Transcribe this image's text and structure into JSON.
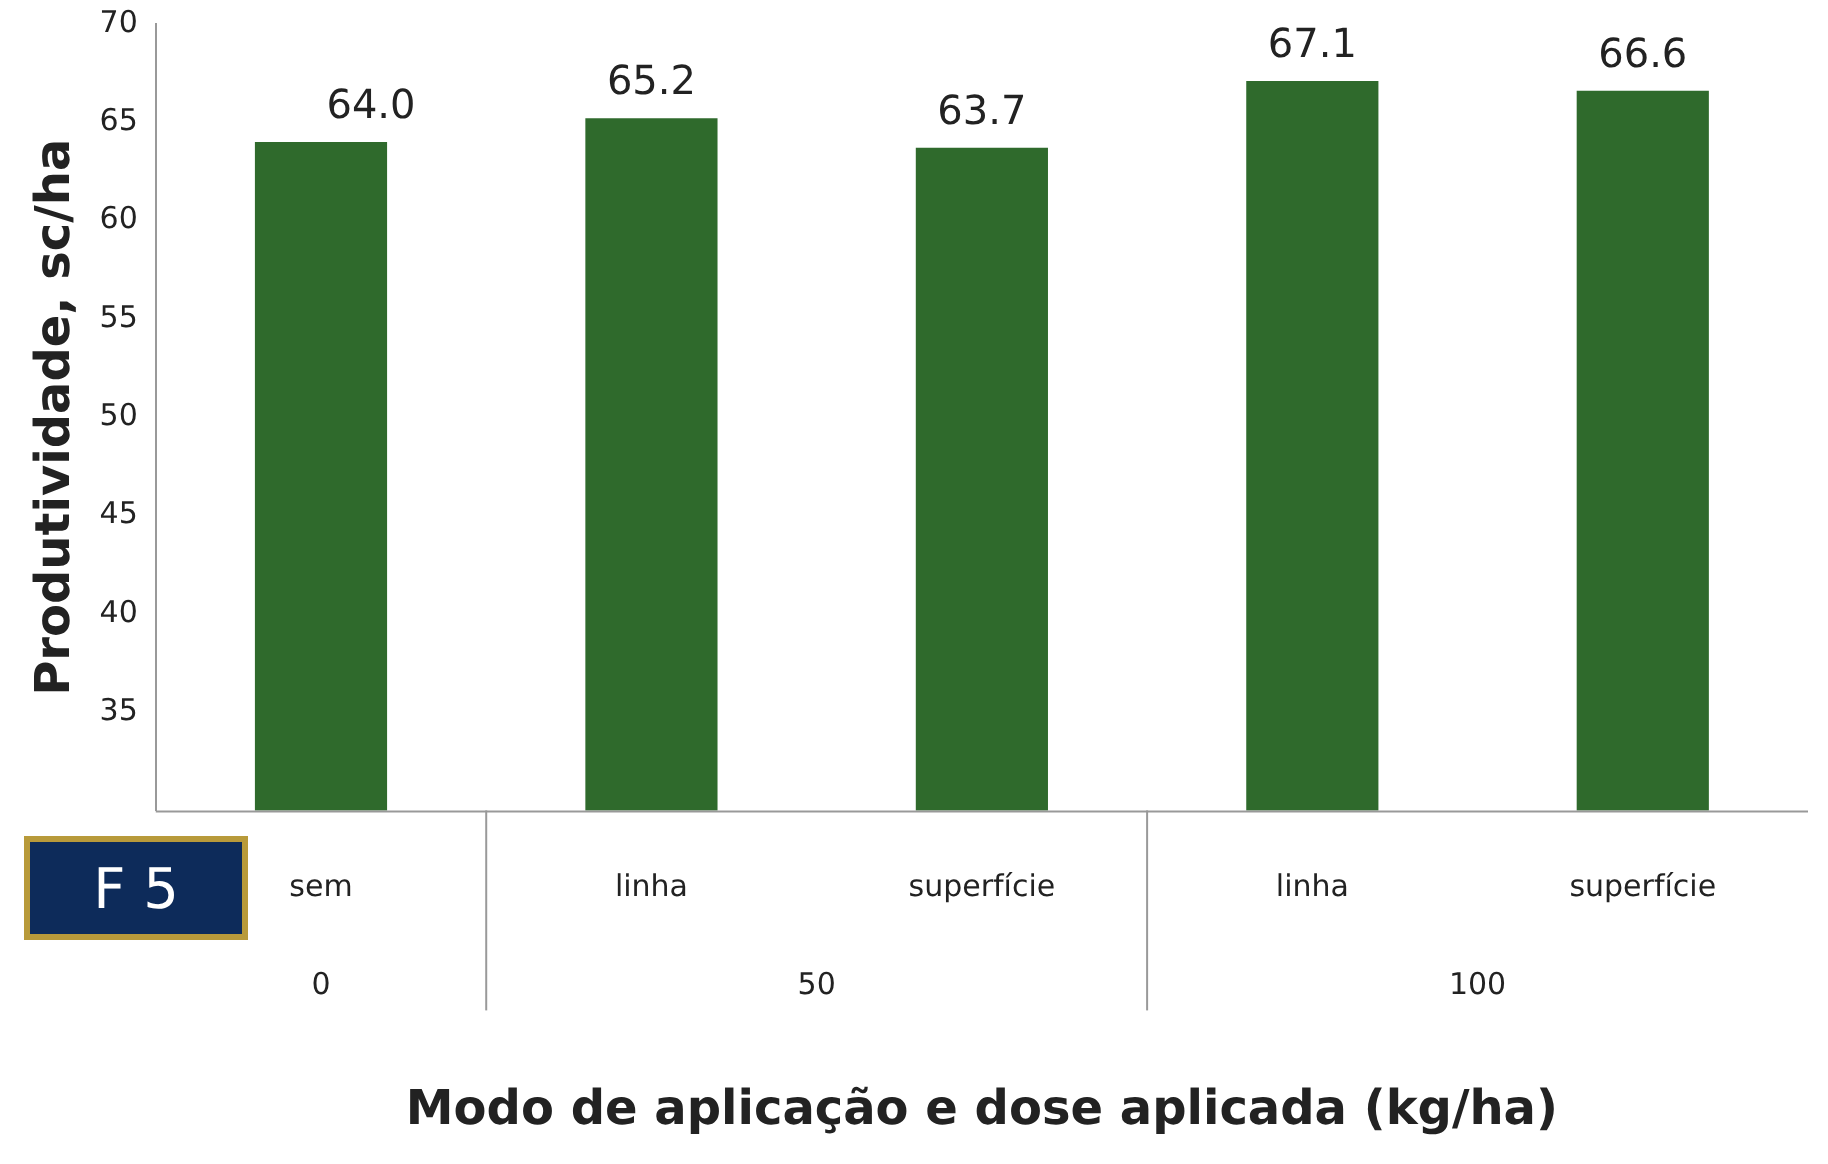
{
  "chart_data": {
    "type": "bar",
    "xlabel": "Modo de aplicação e dose aplicada (kg/ha)",
    "ylabel": "Produtividade, sc/ha",
    "categories": [
      "sem",
      "linha",
      "superfície",
      "linha",
      "superfície"
    ],
    "values": [
      64.0,
      65.2,
      63.7,
      67.1,
      66.6
    ],
    "value_labels": [
      "64.0",
      "65.2",
      "63.7",
      "67.1",
      "66.6"
    ],
    "color": "#2f6a2c",
    "ylim": [
      30,
      70
    ],
    "yticks": [
      {
        "value": 30,
        "label": null
      },
      35,
      40,
      45,
      50,
      55,
      60,
      65,
      70
    ],
    "grid": false,
    "legend": false,
    "annotations": [
      "F 5",
      "0",
      "50",
      "100"
    ]
  }
}
